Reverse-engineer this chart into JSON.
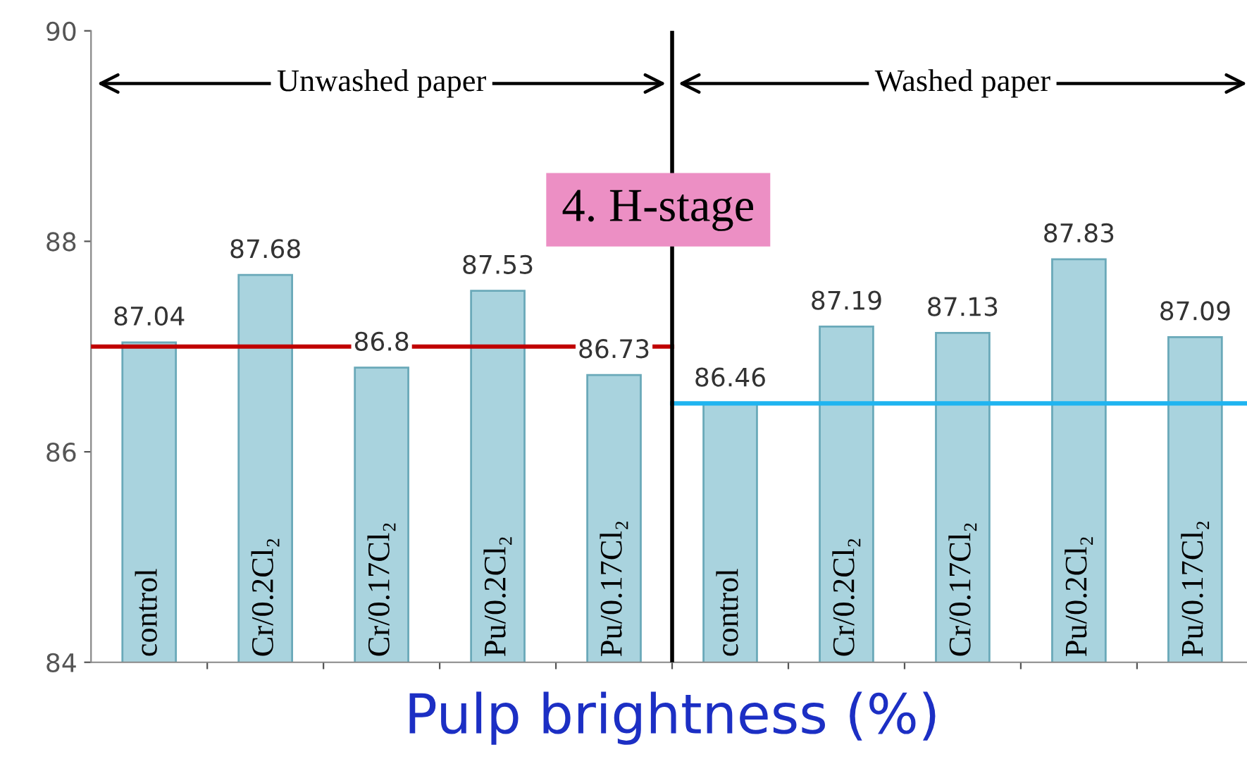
{
  "chart_data": {
    "type": "bar",
    "xlabel": "Pulp brightness (%)",
    "categories": [
      "control",
      "Cr/0.2Cl₂",
      "Cr/0.17Cl₂",
      "Pu/0.2Cl₂",
      "Pu/0.17Cl₂",
      "control",
      "Cr/0.2Cl₂",
      "Cr/0.17Cl₂",
      "Pu/0.2Cl₂",
      "Pu/0.17Cl₂"
    ],
    "values": [
      87.04,
      87.68,
      86.8,
      87.53,
      86.73,
      86.46,
      87.19,
      87.13,
      87.83,
      87.09
    ],
    "color": "#a9d3de",
    "data_labels": true,
    "ylim": [
      84,
      90
    ],
    "yticks": [
      84,
      86,
      88,
      90
    ],
    "ref_lines": [
      {
        "axis": "y",
        "value": 87.0,
        "color": "#c00000"
      },
      {
        "axis": "y",
        "value": 86.46,
        "color": "#1fb4f0"
      }
    ],
    "annotations": [
      "Unwashed paper",
      "Washed paper",
      "4. H-stage"
    ],
    "grid": false,
    "legend": false
  }
}
